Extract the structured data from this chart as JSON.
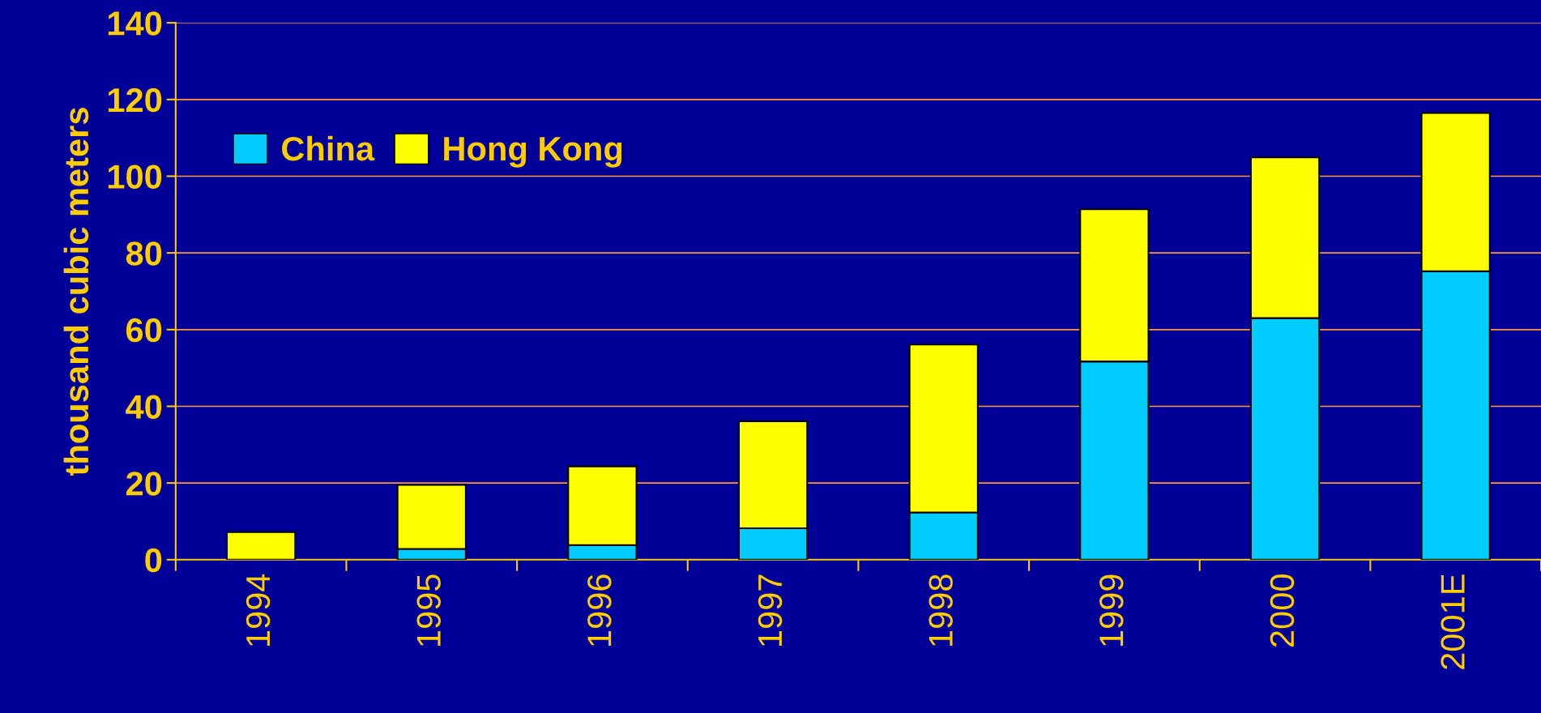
{
  "chart_data": {
    "type": "bar",
    "stacked": true,
    "ylabel": "thousand cubic meters",
    "categories": [
      "1994",
      "1995",
      "1996",
      "1997",
      "1998",
      "1999",
      "2000",
      "2001E"
    ],
    "series": [
      {
        "name": "China",
        "color": "#00ccff",
        "values": [
          0,
          2.8,
          3.8,
          8.2,
          12.3,
          51.7,
          63.0,
          75.2
        ]
      },
      {
        "name": "Hong Kong",
        "color": "#ffff00",
        "values": [
          7.2,
          16.7,
          20.5,
          27.9,
          43.8,
          39.7,
          41.9,
          41.3
        ]
      }
    ],
    "ylim": [
      0,
      140
    ],
    "yticks": [
      0,
      20,
      40,
      60,
      80,
      100,
      120,
      140
    ],
    "grid": "y",
    "legend": "top left"
  }
}
